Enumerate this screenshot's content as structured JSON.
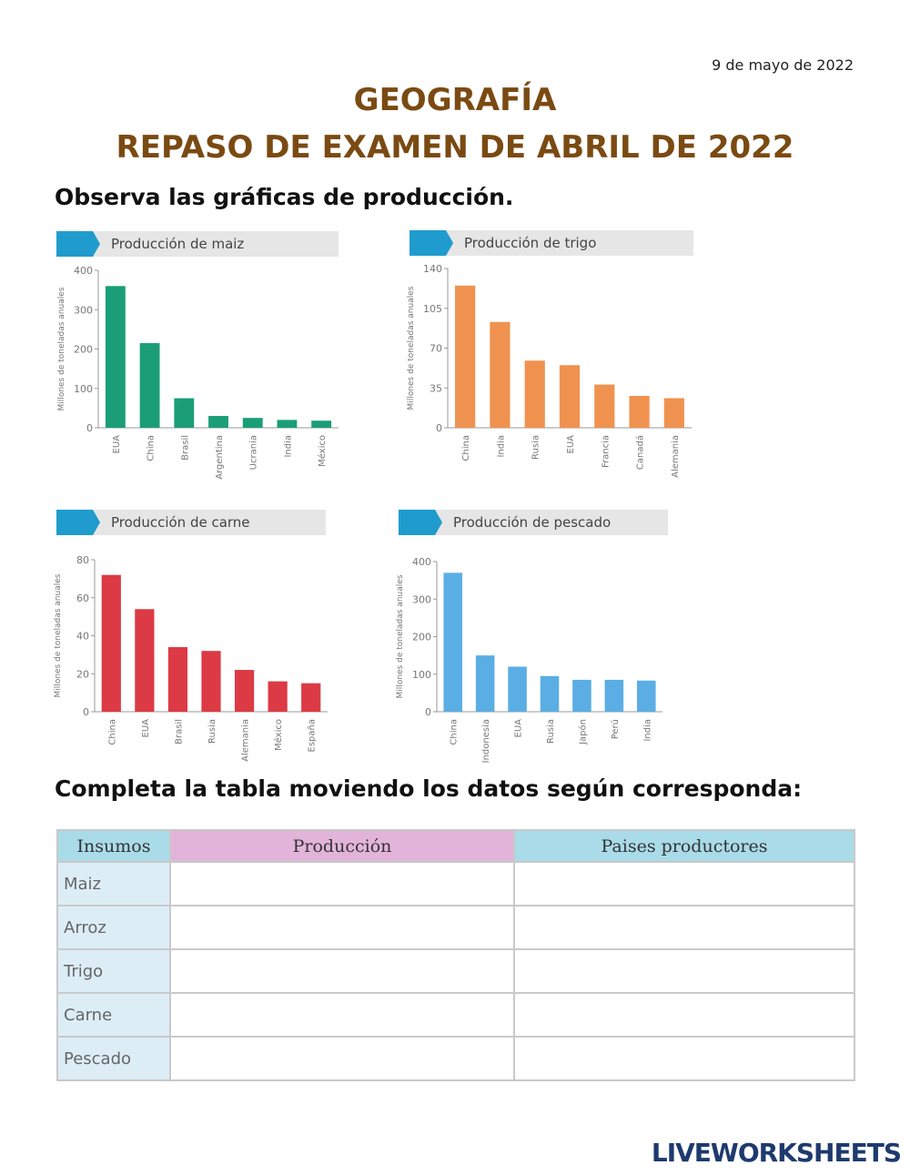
{
  "date": "9 de mayo de 2022",
  "title": "GEOGRAFÍA",
  "subtitle": "REPASO DE EXAMEN DE ABRIL DE 2022",
  "instruction_1": "Observa las gráficas de producción.",
  "chart_data": [
    {
      "type": "bar",
      "title": "Producción de maiz",
      "y_label": "Millones de toneladas anuales",
      "categories": [
        "EUA",
        "China",
        "Brasil",
        "Argentina",
        "Ucrania",
        "India",
        "México"
      ],
      "values": [
        360,
        215,
        75,
        30,
        25,
        20,
        18
      ],
      "color": "#1b9e77",
      "ylim": [
        0,
        400
      ],
      "yticks": [
        0,
        100,
        200,
        300,
        400
      ]
    },
    {
      "type": "bar",
      "title": "Producción de trigo",
      "y_label": "Millones de toneladas anuales",
      "categories": [
        "China",
        "India",
        "Rusia",
        "EUA",
        "Francia",
        "Canadá",
        "Alemania"
      ],
      "values": [
        125,
        93,
        59,
        55,
        38,
        28,
        26
      ],
      "color": "#f0924f",
      "ylim": [
        0,
        140
      ],
      "yticks": [
        0,
        35,
        70,
        105,
        140
      ]
    },
    {
      "type": "bar",
      "title": "Producción de carne",
      "y_label": "Millones de toneladas anuales",
      "categories": [
        "China",
        "EUA",
        "Brasil",
        "Rusia",
        "Alemania",
        "México",
        "España"
      ],
      "values": [
        72,
        54,
        34,
        32,
        22,
        16,
        15
      ],
      "color": "#dc3a45",
      "ylim": [
        0,
        80
      ],
      "yticks": [
        0,
        20,
        40,
        60,
        80
      ]
    },
    {
      "type": "bar",
      "title": "Producción de pescado",
      "y_label": "Millones de toneladas anuales",
      "categories": [
        "China",
        "Indonesia",
        "EUA",
        "Rusia",
        "Japón",
        "Perú",
        "India"
      ],
      "values": [
        370,
        150,
        120,
        95,
        85,
        85,
        83
      ],
      "color": "#5aaee4",
      "ylim": [
        0,
        400
      ],
      "yticks": [
        0,
        100,
        200,
        300,
        400
      ]
    }
  ],
  "instruction_2": "Completa la tabla moviendo los datos según corresponda:",
  "table": {
    "header": [
      "Insumos",
      "Producción",
      "Paises productores"
    ],
    "rows": [
      "Maiz",
      "Arroz",
      "Trigo",
      "Carne",
      "Pescado"
    ]
  },
  "footer": "LIVEWORKSHEETS"
}
